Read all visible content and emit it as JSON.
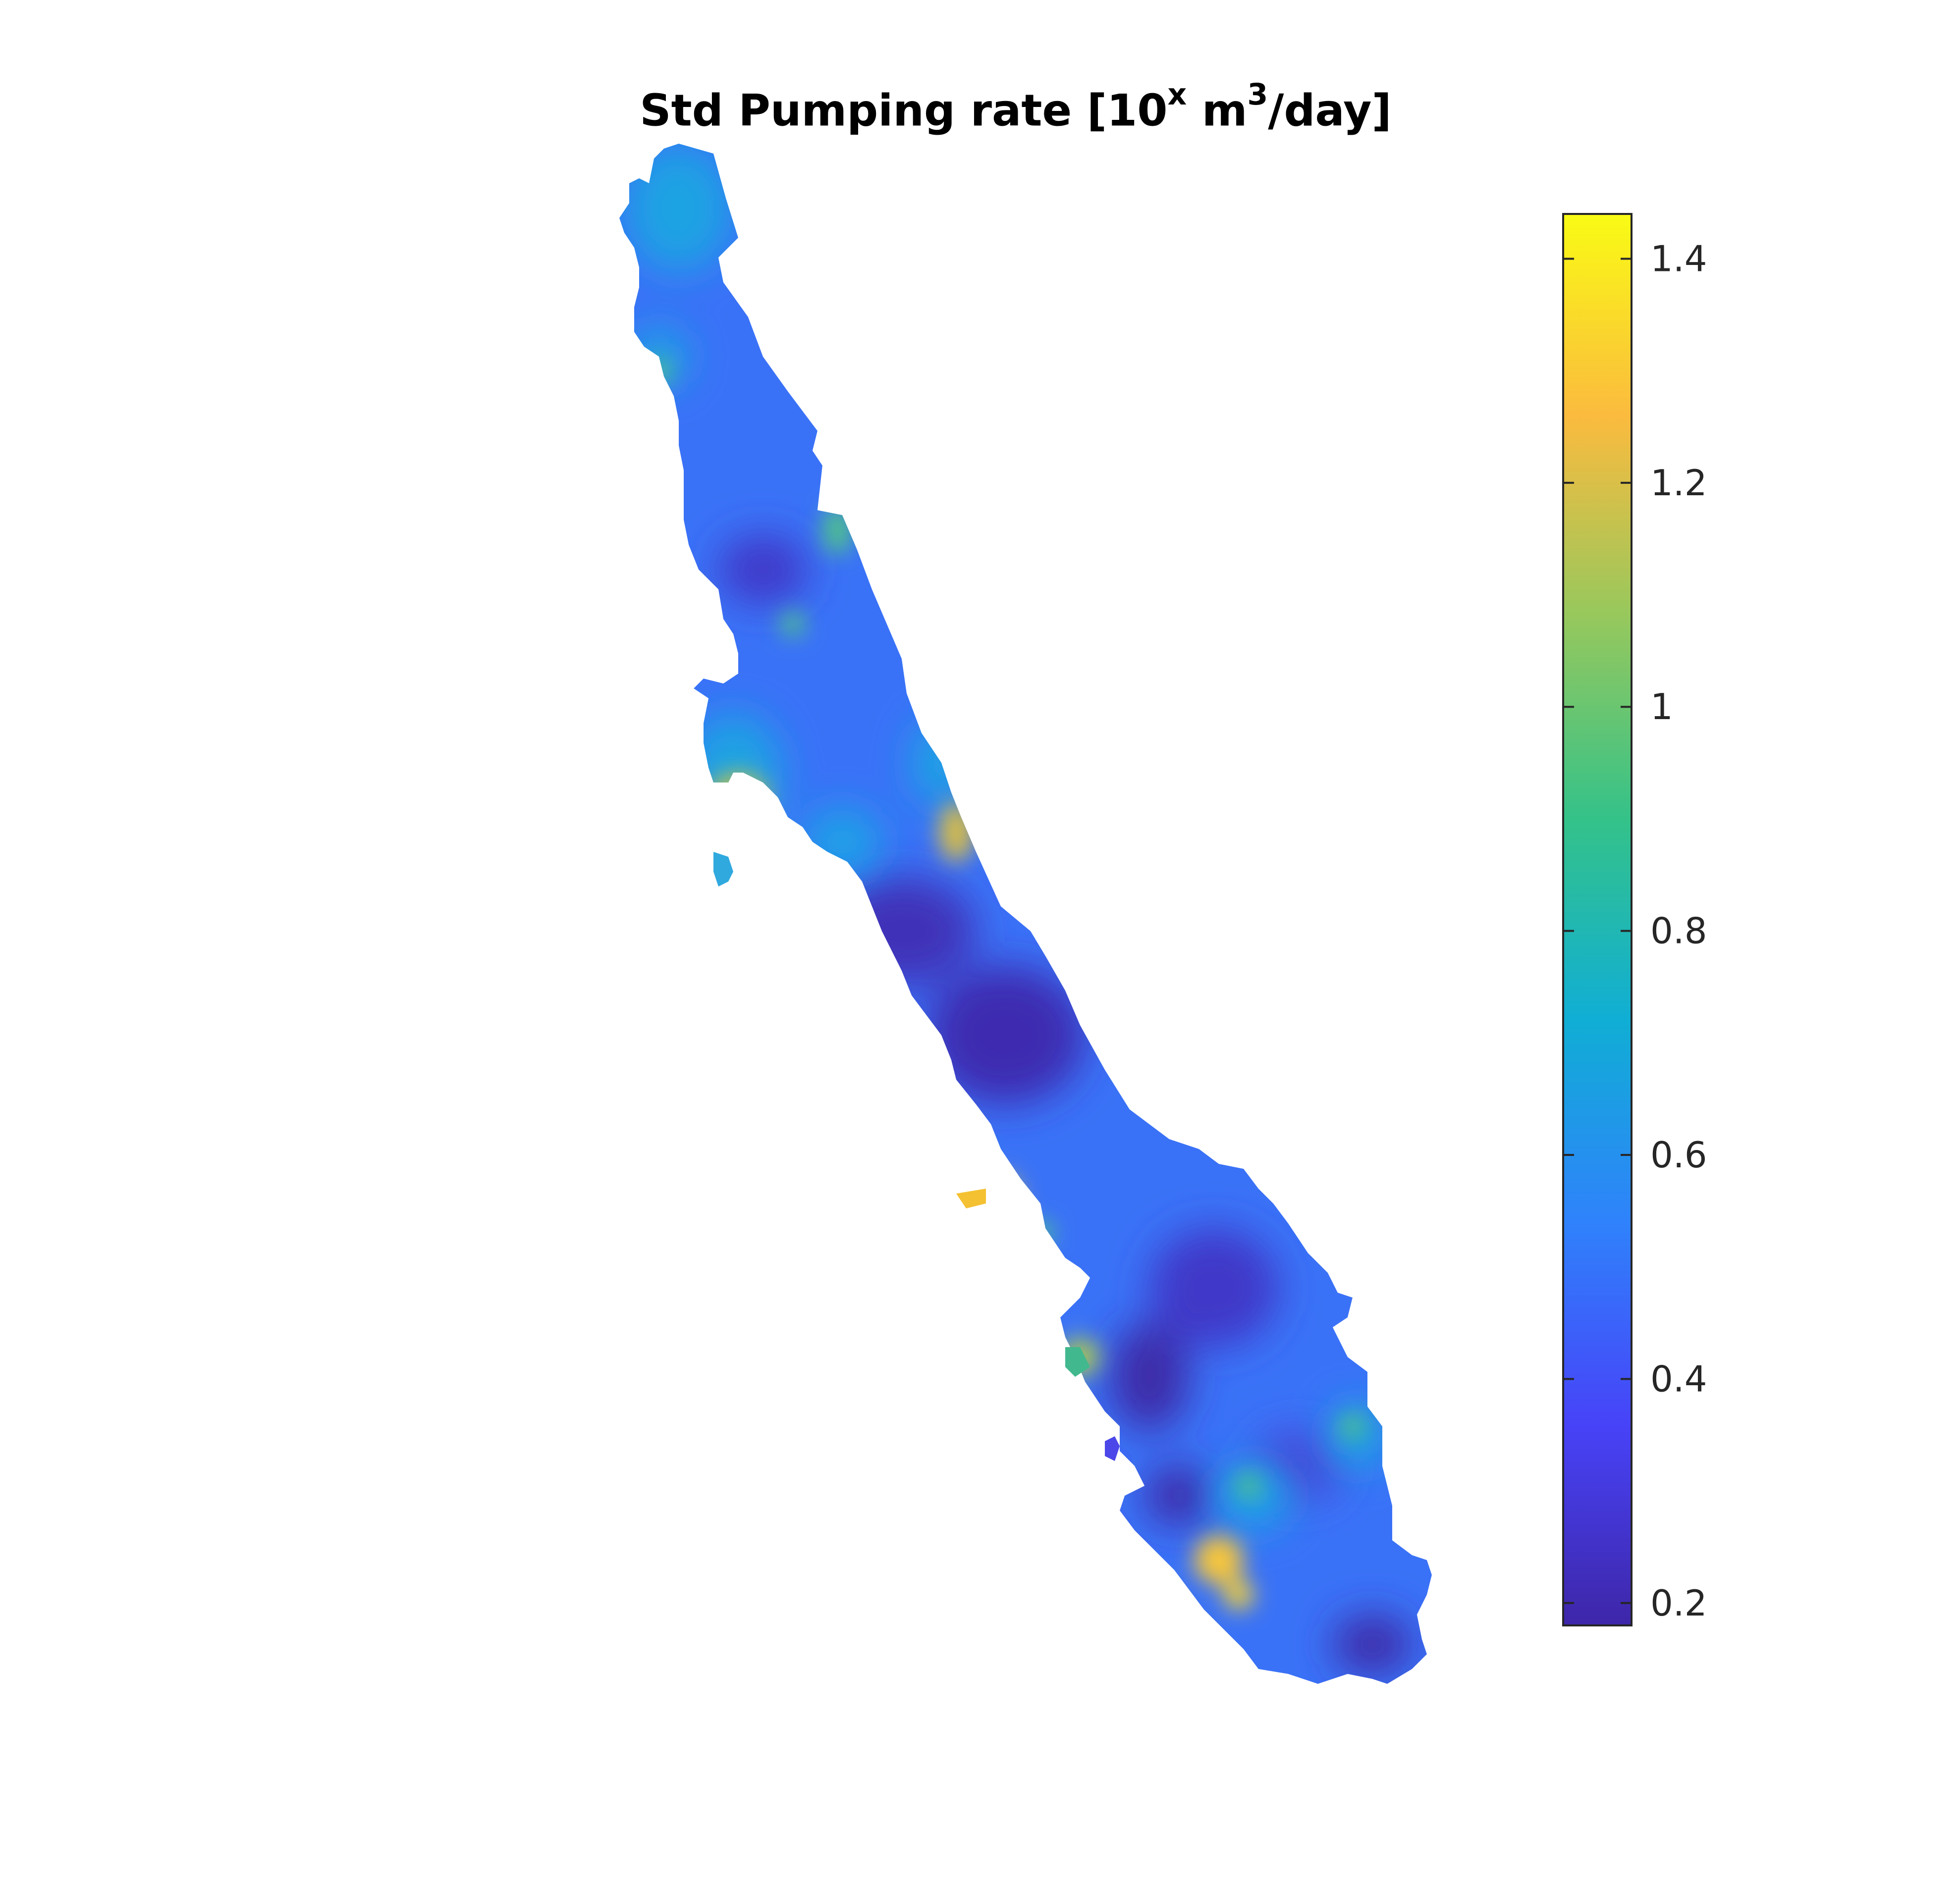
{
  "title": {
    "main": "Std Pumping rate [10",
    "sup1": "x",
    "mid": " m",
    "sup2": "3",
    "end": "/day]"
  },
  "colormap": [
    "#3e26a8",
    "#4743f8",
    "#2f82fb",
    "#10aed5",
    "#34c289",
    "#96c85d",
    "#fbbb3e",
    "#f9fb14"
  ],
  "colorbar": {
    "range": [
      0.18,
      1.44
    ],
    "ticks": [
      0.2,
      0.4,
      0.6,
      0.8,
      1,
      1.2,
      1.4
    ],
    "tick_labels": [
      "0.2",
      "0.4",
      "0.6",
      "0.8",
      "1",
      "1.2",
      "1.4"
    ]
  }
}
